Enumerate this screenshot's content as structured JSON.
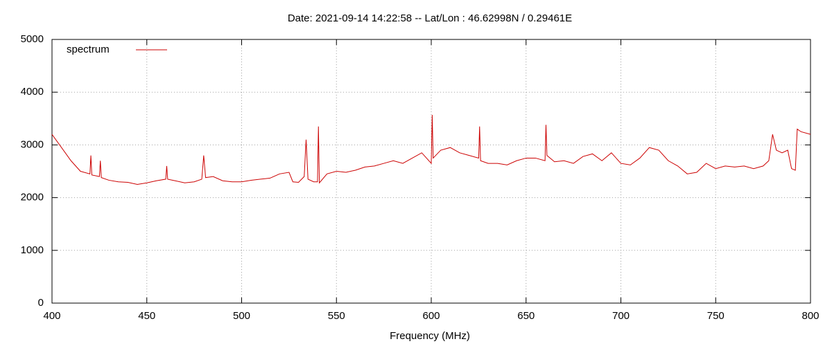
{
  "chart_data": {
    "type": "line",
    "title": "Date: 2021-09-14 14:22:58  --  Lat/Lon : 46.62998N / 0.29461E",
    "x_label": "Frequency (MHz)",
    "x": [
      400,
      405,
      410,
      415,
      420,
      420.5,
      421,
      425,
      425.5,
      426,
      430,
      435,
      440,
      445,
      450,
      455,
      460,
      460.5,
      461,
      465,
      470,
      475,
      479,
      480,
      481,
      485,
      490,
      495,
      500,
      505,
      510,
      515,
      520,
      525,
      527,
      530,
      533,
      534,
      535,
      538,
      540,
      540.5,
      541,
      545,
      550,
      555,
      560,
      565,
      570,
      575,
      580,
      585,
      590,
      595,
      600,
      600.5,
      601,
      605,
      610,
      615,
      620,
      625,
      625.5,
      626,
      630,
      635,
      640,
      645,
      650,
      655,
      660,
      660.5,
      661,
      665,
      670,
      675,
      680,
      685,
      690,
      695,
      700,
      705,
      710,
      715,
      720,
      725,
      730,
      735,
      740,
      745,
      750,
      755,
      760,
      765,
      770,
      775,
      778,
      780,
      782,
      785,
      788,
      790,
      792,
      793,
      795,
      800
    ],
    "series": [
      {
        "name": "spectrum",
        "color": "#cc0000",
        "values": [
          3200,
          2950,
          2700,
          2500,
          2450,
          2800,
          2430,
          2400,
          2700,
          2380,
          2330,
          2300,
          2290,
          2250,
          2280,
          2320,
          2350,
          2600,
          2350,
          2320,
          2280,
          2300,
          2350,
          2800,
          2380,
          2400,
          2320,
          2300,
          2300,
          2330,
          2350,
          2370,
          2450,
          2480,
          2300,
          2290,
          2400,
          3100,
          2350,
          2300,
          2300,
          3350,
          2280,
          2450,
          2500,
          2480,
          2520,
          2580,
          2600,
          2650,
          2700,
          2650,
          2750,
          2850,
          2650,
          3570,
          2750,
          2900,
          2950,
          2850,
          2800,
          2750,
          3350,
          2700,
          2650,
          2650,
          2620,
          2700,
          2750,
          2750,
          2700,
          3380,
          2800,
          2680,
          2700,
          2650,
          2780,
          2830,
          2700,
          2850,
          2650,
          2620,
          2750,
          2950,
          2900,
          2700,
          2600,
          2450,
          2480,
          2650,
          2550,
          2600,
          2580,
          2600,
          2550,
          2600,
          2700,
          3200,
          2900,
          2850,
          2900,
          2550,
          2520,
          3300,
          3250,
          3200
        ]
      }
    ],
    "xlim": [
      400,
      800
    ],
    "xticks": [
      400,
      450,
      500,
      550,
      600,
      650,
      700,
      750,
      800
    ],
    "ylim": [
      0,
      5000
    ],
    "yticks": [
      0,
      1000,
      2000,
      3000,
      4000,
      5000
    ],
    "grid": true,
    "legend": "top-left"
  }
}
